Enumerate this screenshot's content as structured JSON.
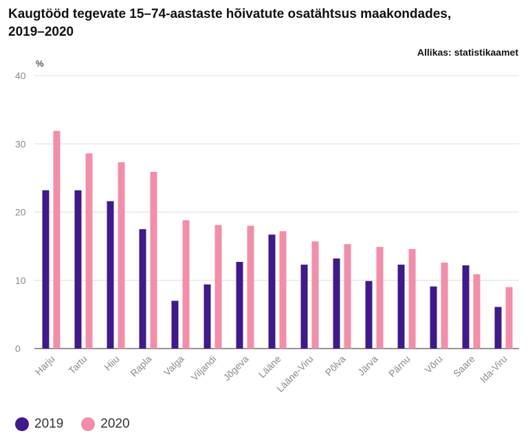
{
  "chart_data": {
    "type": "bar",
    "title": "Kaugtööd tegevate 15–74-aastaste hõivatute osatähtsus maakondades, 2019–2020",
    "source": "Allikas: statistikaamet",
    "ylabel": "%",
    "ylim": [
      0,
      40
    ],
    "yticks": [
      0,
      10,
      20,
      30,
      40
    ],
    "categories": [
      "Harju",
      "Tartu",
      "Hiiu",
      "Rapla",
      "Valga",
      "Viljandi",
      "Jõgeva",
      "Lääne",
      "Lääne-Viru",
      "Põlva",
      "Järva",
      "Pärnu",
      "Võru",
      "Saare",
      "Ida-Viru"
    ],
    "series": [
      {
        "name": "2019",
        "color": "#3f1a8a",
        "values": [
          23.2,
          23.2,
          21.6,
          17.5,
          7.0,
          9.4,
          12.7,
          16.7,
          12.3,
          13.2,
          9.9,
          12.3,
          9.1,
          12.2,
          6.1
        ]
      },
      {
        "name": "2020",
        "color": "#f28ea9",
        "values": [
          31.9,
          28.6,
          27.3,
          25.9,
          18.8,
          18.1,
          18.0,
          17.2,
          15.7,
          15.3,
          14.9,
          14.6,
          12.6,
          10.9,
          9.0
        ]
      }
    ]
  }
}
